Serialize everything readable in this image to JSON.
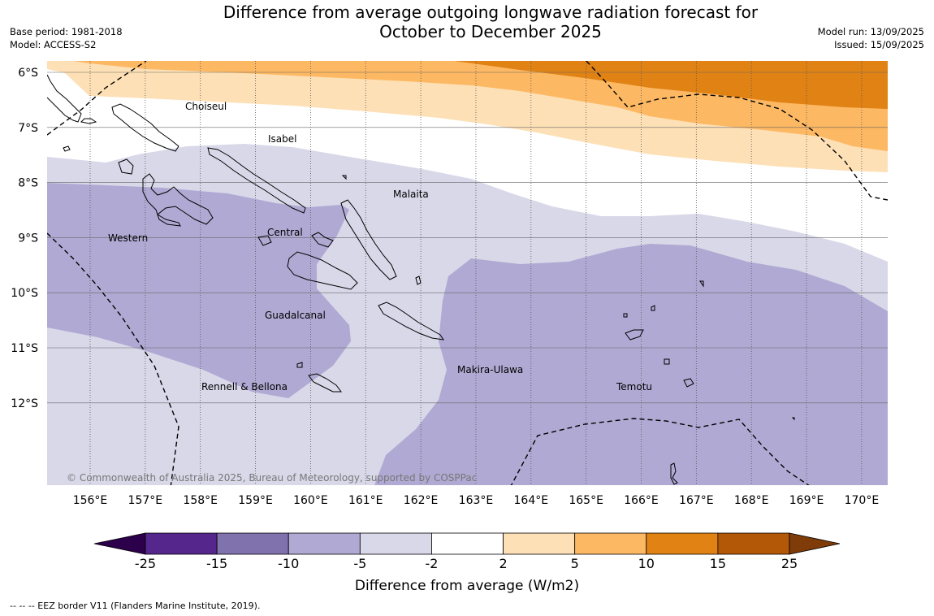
{
  "title_line1": "Difference from average outgoing longwave radiation forecast for",
  "title_line2": "October to December 2025",
  "meta_left": {
    "base_period": "Base period: 1981-2018",
    "model": "Model: ACCESS-S2"
  },
  "meta_right": {
    "model_run": "Model run: 13/09/2025",
    "issued": "Issued: 15/09/2025"
  },
  "map": {
    "lat_labels": [
      "6°S",
      "7°S",
      "8°S",
      "9°S",
      "10°S",
      "11°S",
      "12°S"
    ],
    "lon_labels": [
      "156°E",
      "157°E",
      "158°E",
      "159°E",
      "160°E",
      "161°E",
      "162°E",
      "163°E",
      "164°E",
      "165°E",
      "166°E",
      "167°E",
      "168°E",
      "169°E",
      "170°E"
    ],
    "region_labels": [
      "Choiseul",
      "Isabel",
      "Malaita",
      "Western",
      "Central",
      "Guadalcanal",
      "Makira-Ulawa",
      "Rennell & Bellona",
      "Temotu"
    ],
    "copyright": "© Commonwealth of Australia 2025, Bureau of Meteorology, supported by COSPPac"
  },
  "colorbar": {
    "tick_labels": [
      "-25",
      "-15",
      "-10",
      "-5",
      "-2",
      "2",
      "5",
      "10",
      "15",
      "25"
    ],
    "colors": [
      "#55278c",
      "#8072ac",
      "#b0a9d3",
      "#d8d8e9",
      "#ffffff",
      "#fee0b6",
      "#fdb863",
      "#e08214",
      "#b35806"
    ],
    "under_color": "#2d004b",
    "over_color": "#7f3b08",
    "label": "Difference from average (W/m2)"
  },
  "footnote": "--  --  -- EEZ border V11 (Flanders Marine Institute, 2019)."
}
